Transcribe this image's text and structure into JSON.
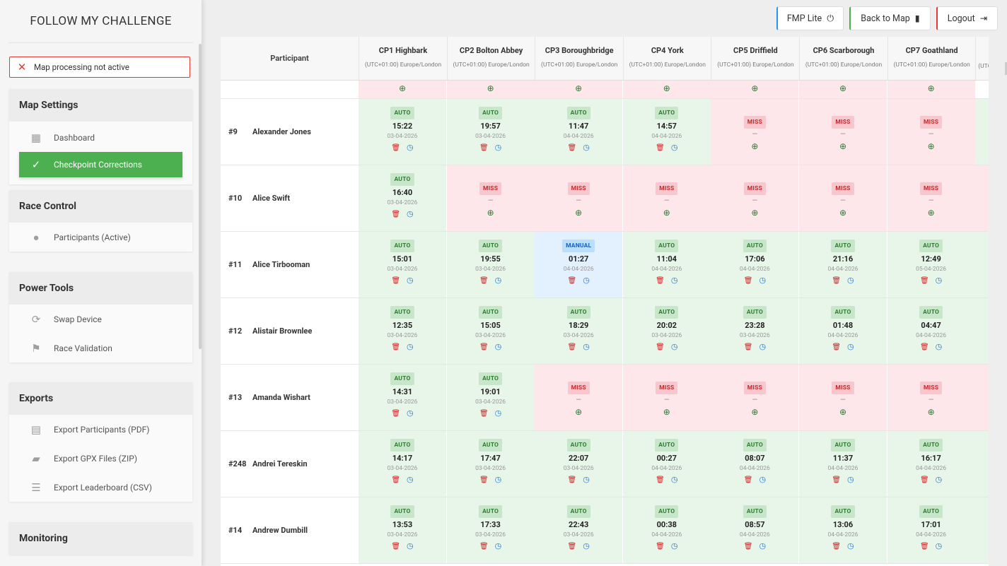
{
  "app": {
    "title": "FOLLOW MY CHALLENGE"
  },
  "alert": {
    "icon": "close-icon",
    "text": "Map processing not active"
  },
  "sidebar": {
    "sections": [
      {
        "title": "Map Settings",
        "items": [
          {
            "label": "Dashboard",
            "icon": "dashboard-icon"
          },
          {
            "label": "Checkpoint Corrections",
            "icon": "check-circle-icon",
            "active": true
          }
        ]
      },
      {
        "title": "Race Control",
        "items": [
          {
            "label": "Participants (Active)",
            "icon": "person-icon"
          }
        ]
      },
      {
        "title": "Power Tools",
        "items": [
          {
            "label": "Swap Device",
            "icon": "sync-icon"
          },
          {
            "label": "Race Validation",
            "icon": "checkered-flag-icon"
          }
        ]
      },
      {
        "title": "Exports",
        "items": [
          {
            "label": "Export Participants (PDF)",
            "icon": "pdf-icon"
          },
          {
            "label": "Export GPX Files (ZIP)",
            "icon": "zip-folder-icon"
          },
          {
            "label": "Export Leaderboard (CSV)",
            "icon": "list-icon"
          }
        ]
      },
      {
        "title": "Monitoring",
        "items": []
      }
    ]
  },
  "topbar": {
    "fmp_lite": "FMP Lite",
    "fmp_lite_color": "#2196f3",
    "back_to_map": "Back to Map",
    "back_to_map_color": "#4caf50",
    "logout": "Logout",
    "logout_color": "#e53935"
  },
  "table": {
    "participant_header": "Participant",
    "checkpoints": [
      {
        "name": "CP1 Highbark",
        "tz": "(UTC+01:00) Europe/London"
      },
      {
        "name": "CP2 Bolton Abbey",
        "tz": "(UTC+01:00) Europe/London"
      },
      {
        "name": "CP3 Boroughbridge",
        "tz": "(UTC+01:00) Europe/London"
      },
      {
        "name": "CP4 York",
        "tz": "(UTC+01:00) Europe/London"
      },
      {
        "name": "CP5 Driffield",
        "tz": "(UTC+01:00) Europe/London"
      },
      {
        "name": "CP6 Scarborough",
        "tz": "(UTC+01:00) Europe/London"
      },
      {
        "name": "CP7 Goathland",
        "tz": "(UTC+01:00) Europe/London"
      }
    ],
    "partial_next_header_tz": "(UTC",
    "rows": [
      {
        "num": "#9",
        "name": "Alexander Jones",
        "cells": [
          {
            "status": "AUTO",
            "time": "15:22",
            "date": "03-04-2026"
          },
          {
            "status": "AUTO",
            "time": "19:57",
            "date": "03-04-2026"
          },
          {
            "status": "AUTO",
            "time": "11:47",
            "date": "04-04-2026"
          },
          {
            "status": "AUTO",
            "time": "14:57",
            "date": "04-04-2026"
          },
          {
            "status": "MISS",
            "time": "—"
          },
          {
            "status": "MISS",
            "time": "—"
          },
          {
            "status": "MISS",
            "time": "—"
          }
        ]
      },
      {
        "num": "#10",
        "name": "Alice Swift",
        "cells": [
          {
            "status": "AUTO",
            "time": "16:40",
            "date": "03-04-2026"
          },
          {
            "status": "MISS",
            "time": "—"
          },
          {
            "status": "MISS",
            "time": "—"
          },
          {
            "status": "MISS",
            "time": "—"
          },
          {
            "status": "MISS",
            "time": "—"
          },
          {
            "status": "MISS",
            "time": "—"
          },
          {
            "status": "MISS",
            "time": "—"
          }
        ]
      },
      {
        "num": "#11",
        "name": "Alice Tirbooman",
        "cells": [
          {
            "status": "AUTO",
            "time": "15:01",
            "date": "03-04-2026"
          },
          {
            "status": "AUTO",
            "time": "19:55",
            "date": "03-04-2026"
          },
          {
            "status": "MANUAL",
            "time": "01:27",
            "date": "04-04-2026"
          },
          {
            "status": "AUTO",
            "time": "11:04",
            "date": "04-04-2026"
          },
          {
            "status": "AUTO",
            "time": "17:06",
            "date": "04-04-2026"
          },
          {
            "status": "AUTO",
            "time": "21:16",
            "date": "04-04-2026"
          },
          {
            "status": "AUTO",
            "time": "12:49",
            "date": "05-04-2026"
          }
        ]
      },
      {
        "num": "#12",
        "name": "Alistair Brownlee",
        "cells": [
          {
            "status": "AUTO",
            "time": "12:35",
            "date": "03-04-2026"
          },
          {
            "status": "AUTO",
            "time": "15:05",
            "date": "03-04-2026"
          },
          {
            "status": "AUTO",
            "time": "18:29",
            "date": "03-04-2026"
          },
          {
            "status": "AUTO",
            "time": "20:02",
            "date": "03-04-2026"
          },
          {
            "status": "AUTO",
            "time": "23:28",
            "date": "03-04-2026"
          },
          {
            "status": "AUTO",
            "time": "01:48",
            "date": "04-04-2026"
          },
          {
            "status": "AUTO",
            "time": "04:47",
            "date": "04-04-2026"
          }
        ]
      },
      {
        "num": "#13",
        "name": "Amanda Wishart",
        "cells": [
          {
            "status": "AUTO",
            "time": "14:31",
            "date": "03-04-2026"
          },
          {
            "status": "AUTO",
            "time": "19:01",
            "date": "03-04-2026"
          },
          {
            "status": "MISS",
            "time": "—"
          },
          {
            "status": "MISS",
            "time": "—"
          },
          {
            "status": "MISS",
            "time": "—"
          },
          {
            "status": "MISS",
            "time": "—"
          },
          {
            "status": "MISS",
            "time": "—"
          }
        ]
      },
      {
        "num": "#248",
        "name": "Andrei Tereskin",
        "cells": [
          {
            "status": "AUTO",
            "time": "14:17",
            "date": "03-04-2026"
          },
          {
            "status": "AUTO",
            "time": "17:47",
            "date": "03-04-2026"
          },
          {
            "status": "AUTO",
            "time": "22:07",
            "date": "03-04-2026"
          },
          {
            "status": "AUTO",
            "time": "00:27",
            "date": "04-04-2026"
          },
          {
            "status": "AUTO",
            "time": "08:07",
            "date": "04-04-2026"
          },
          {
            "status": "AUTO",
            "time": "11:37",
            "date": "04-04-2026"
          },
          {
            "status": "AUTO",
            "time": "16:17",
            "date": "04-04-2026"
          }
        ]
      },
      {
        "num": "#14",
        "name": "Andrew Dumbill",
        "cells": [
          {
            "status": "AUTO",
            "time": "13:53",
            "date": "03-04-2026"
          },
          {
            "status": "AUTO",
            "time": "17:33",
            "date": "03-04-2026"
          },
          {
            "status": "AUTO",
            "time": "22:43",
            "date": "03-04-2026"
          },
          {
            "status": "AUTO",
            "time": "00:38",
            "date": "04-04-2026"
          },
          {
            "status": "AUTO",
            "time": "08:57",
            "date": "04-04-2026"
          },
          {
            "status": "AUTO",
            "time": "13:06",
            "date": "04-04-2026"
          },
          {
            "status": "AUTO",
            "time": "17:01",
            "date": "04-04-2026"
          }
        ]
      }
    ]
  }
}
